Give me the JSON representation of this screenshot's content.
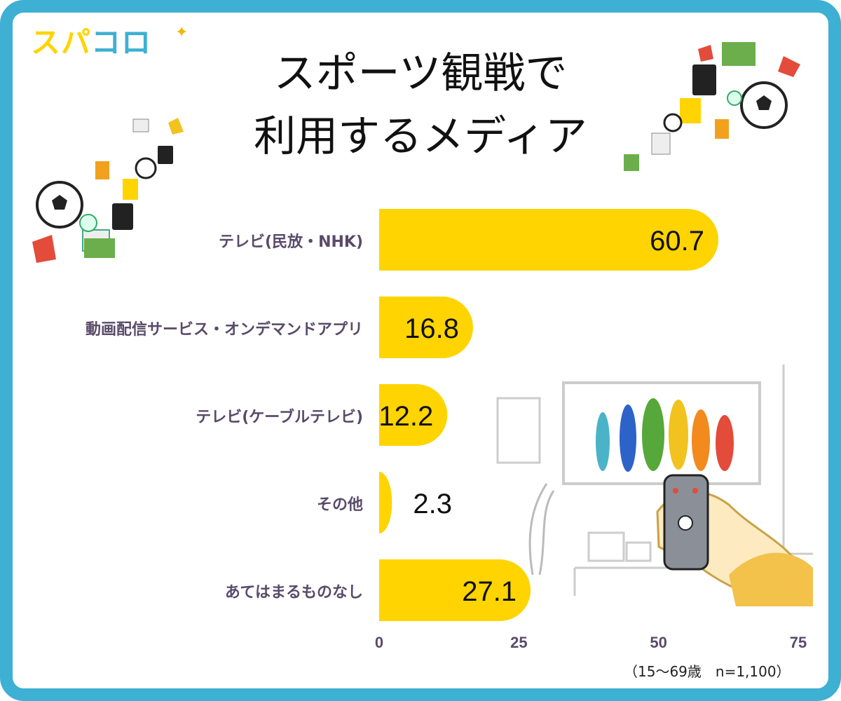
{
  "logo": {
    "text_a": "スパ",
    "text_b": "コロ"
  },
  "title": {
    "line1": "スポーツ観戦で",
    "line2": "利用するメディア"
  },
  "note": "（15～69歳　n=1,100）",
  "colors": {
    "frame": "#3db0d3",
    "bar": "#ffd400",
    "label": "#5a4a6a",
    "axis": "#5a4a6a"
  },
  "icons": [
    "sparkle-icon",
    "soccer-ball-icon",
    "tv-icon",
    "remote-control-icon",
    "plant-icon"
  ],
  "chart_data": {
    "type": "bar",
    "orientation": "horizontal",
    "categories": [
      "テレビ(民放・NHK)",
      "動画配信サービス・オンデマンドアプリ",
      "テレビ(ケーブルテレビ)",
      "その他",
      "あてはまるものなし"
    ],
    "values": [
      60.7,
      16.8,
      12.2,
      2.3,
      27.1
    ],
    "value_labels": [
      "60.7",
      "16.8",
      "12.2",
      "2.3",
      "27.1"
    ],
    "xlim": [
      0,
      75
    ],
    "xticks": [
      "0",
      "25",
      "50",
      "75"
    ],
    "grid": false,
    "legend": "none"
  }
}
